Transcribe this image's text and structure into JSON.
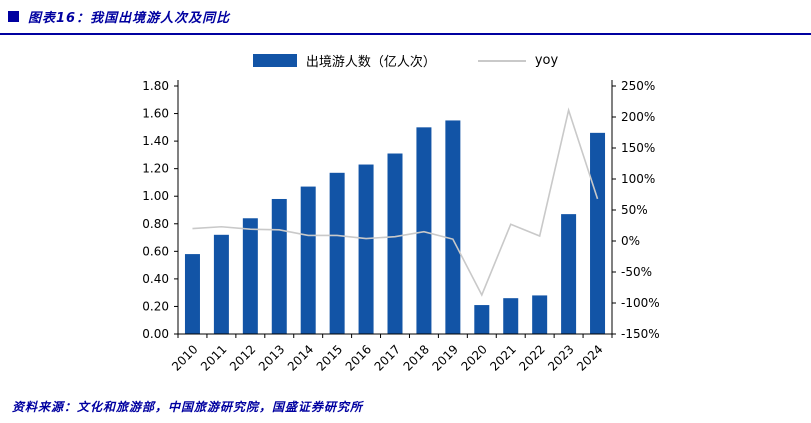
{
  "header": {
    "title": "图表16：我国出境游人次及同比"
  },
  "footer": {
    "source": "资料来源：文化和旅游部，中国旅游研究院，国盛证券研究所"
  },
  "colors": {
    "navy": "#0000A0",
    "bar": "#1254A6",
    "line": "#C9C9C9",
    "axis": "#000000"
  },
  "chart_data": {
    "type": "bar",
    "subtype": "bar-with-line-overlay",
    "title": "图表16：我国出境游人次及同比",
    "categories": [
      "2010",
      "2011",
      "2012",
      "2013",
      "2014",
      "2015",
      "2016",
      "2017",
      "2018",
      "2019",
      "2020",
      "2021",
      "2022",
      "2023",
      "2024"
    ],
    "series": [
      {
        "name": "出境游人数（亿人次）",
        "type": "bar",
        "axis": "left",
        "values": [
          0.58,
          0.72,
          0.84,
          0.98,
          1.07,
          1.17,
          1.23,
          1.31,
          1.5,
          1.55,
          0.21,
          0.26,
          0.28,
          0.87,
          1.46
        ]
      },
      {
        "name": "yoy",
        "type": "line",
        "axis": "right",
        "values": [
          20,
          23,
          19,
          18,
          9,
          9,
          4,
          7,
          15,
          3,
          -87,
          27,
          8,
          211,
          68
        ]
      }
    ],
    "left_axis": {
      "min": 0,
      "max": 1.8,
      "step": 0.2,
      "format": "2dp"
    },
    "right_axis": {
      "min": -150,
      "max": 250,
      "step": 50,
      "suffix": "%"
    },
    "legend_position": "top",
    "grid": false
  }
}
